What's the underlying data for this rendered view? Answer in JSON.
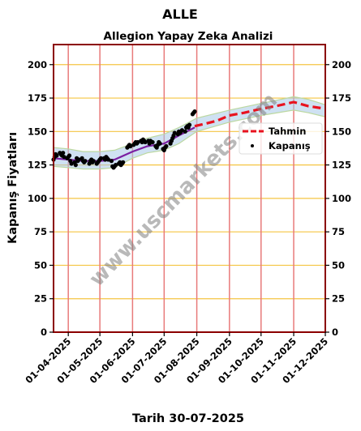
{
  "chart_data": {
    "type": "line",
    "title": "ALLE",
    "subtitle": "Allegion Yapay Zeka Analizi",
    "xlabel": "Tarih 30-07-2025",
    "ylabel": "Kapanış Fiyatları",
    "watermark": "www.uscmarkets.com",
    "x_range": [
      "2025-03-18",
      "2025-12-01"
    ],
    "ylim": [
      0,
      215
    ],
    "y_ticks": [
      0,
      25,
      50,
      75,
      100,
      125,
      150,
      175,
      200
    ],
    "x_ticks": [
      "2025-04-01",
      "2025-05-01",
      "2025-06-01",
      "2025-07-01",
      "2025-08-01",
      "2025-09-01",
      "2025-10-01",
      "2025-11-01",
      "2025-12-01"
    ],
    "x_tick_labels": [
      "01-04-2025",
      "01-05-2025",
      "01-06-2025",
      "01-07-2025",
      "01-08-2025",
      "01-09-2025",
      "01-10-2025",
      "01-11-2025",
      "01-12-2025"
    ],
    "legend": {
      "position": "right",
      "entries": [
        "Tahmin",
        "Kapanış"
      ]
    },
    "grid": {
      "horizontal": true,
      "vertical": true
    },
    "colors": {
      "frame": "#8b0000",
      "hgrid": "#f5c542",
      "vgrid": "#e87a7a",
      "forecast": "#e8121f",
      "trend": "#7b1fa2",
      "band": "#a8c8e8",
      "band_edge": "#bcd8a0",
      "closing": "#000000",
      "watermark": "#808080"
    },
    "series": [
      {
        "name": "Kapanış",
        "style": "scatter",
        "points": [
          [
            "2025-03-18",
            129
          ],
          [
            "2025-03-19",
            131
          ],
          [
            "2025-03-20",
            133
          ],
          [
            "2025-03-21",
            132
          ],
          [
            "2025-03-24",
            134
          ],
          [
            "2025-03-25",
            133
          ],
          [
            "2025-03-26",
            132
          ],
          [
            "2025-03-27",
            134
          ],
          [
            "2025-03-28",
            131
          ],
          [
            "2025-03-31",
            130
          ],
          [
            "2025-04-01",
            131
          ],
          [
            "2025-04-02",
            132
          ],
          [
            "2025-04-03",
            128
          ],
          [
            "2025-04-04",
            126
          ],
          [
            "2025-04-07",
            127
          ],
          [
            "2025-04-08",
            125
          ],
          [
            "2025-04-09",
            130
          ],
          [
            "2025-04-10",
            128
          ],
          [
            "2025-04-11",
            129
          ],
          [
            "2025-04-14",
            130
          ],
          [
            "2025-04-15",
            128
          ],
          [
            "2025-04-16",
            127
          ],
          [
            "2025-04-17",
            128
          ],
          [
            "2025-04-21",
            126
          ],
          [
            "2025-04-22",
            128
          ],
          [
            "2025-04-23",
            129
          ],
          [
            "2025-04-24",
            127
          ],
          [
            "2025-04-25",
            128
          ],
          [
            "2025-04-28",
            126
          ],
          [
            "2025-04-29",
            127
          ],
          [
            "2025-04-30",
            128
          ],
          [
            "2025-05-01",
            129
          ],
          [
            "2025-05-02",
            130
          ],
          [
            "2025-05-05",
            130
          ],
          [
            "2025-05-06",
            129
          ],
          [
            "2025-05-07",
            131
          ],
          [
            "2025-05-08",
            130
          ],
          [
            "2025-05-09",
            129
          ],
          [
            "2025-05-12",
            128
          ],
          [
            "2025-05-13",
            124
          ],
          [
            "2025-05-14",
            123
          ],
          [
            "2025-05-15",
            124
          ],
          [
            "2025-05-16",
            125
          ],
          [
            "2025-05-19",
            126
          ],
          [
            "2025-05-20",
            127
          ],
          [
            "2025-05-21",
            125
          ],
          [
            "2025-05-22",
            126
          ],
          [
            "2025-05-23",
            127
          ],
          [
            "2025-05-27",
            138
          ],
          [
            "2025-05-28",
            139
          ],
          [
            "2025-05-29",
            140
          ],
          [
            "2025-05-30",
            139
          ],
          [
            "2025-06-02",
            140
          ],
          [
            "2025-06-03",
            141
          ],
          [
            "2025-06-04",
            142
          ],
          [
            "2025-06-05",
            141
          ],
          [
            "2025-06-06",
            142
          ],
          [
            "2025-06-09",
            143
          ],
          [
            "2025-06-10",
            142
          ],
          [
            "2025-06-11",
            144
          ],
          [
            "2025-06-12",
            143
          ],
          [
            "2025-06-13",
            142
          ],
          [
            "2025-06-16",
            143
          ],
          [
            "2025-06-17",
            141
          ],
          [
            "2025-06-18",
            143
          ],
          [
            "2025-06-20",
            142
          ],
          [
            "2025-06-23",
            139
          ],
          [
            "2025-06-24",
            138
          ],
          [
            "2025-06-25",
            140
          ],
          [
            "2025-06-26",
            142
          ],
          [
            "2025-06-27",
            141
          ],
          [
            "2025-06-30",
            137
          ],
          [
            "2025-07-01",
            136
          ],
          [
            "2025-07-02",
            138
          ],
          [
            "2025-07-03",
            139
          ],
          [
            "2025-07-07",
            141
          ],
          [
            "2025-07-08",
            143
          ],
          [
            "2025-07-09",
            145
          ],
          [
            "2025-07-10",
            147
          ],
          [
            "2025-07-11",
            149
          ],
          [
            "2025-07-14",
            148
          ],
          [
            "2025-07-15",
            150
          ],
          [
            "2025-07-16",
            149
          ],
          [
            "2025-07-17",
            150
          ],
          [
            "2025-07-18",
            151
          ],
          [
            "2025-07-21",
            150
          ],
          [
            "2025-07-22",
            153
          ],
          [
            "2025-07-23",
            154
          ],
          [
            "2025-07-24",
            153
          ],
          [
            "2025-07-25",
            155
          ],
          [
            "2025-07-28",
            163
          ],
          [
            "2025-07-29",
            164
          ],
          [
            "2025-07-30",
            165
          ]
        ]
      },
      {
        "name": "trend",
        "style": "line",
        "points": [
          [
            "2025-03-18",
            130
          ],
          [
            "2025-04-01",
            129
          ],
          [
            "2025-04-15",
            128
          ],
          [
            "2025-05-01",
            128
          ],
          [
            "2025-05-15",
            129
          ],
          [
            "2025-06-01",
            135
          ],
          [
            "2025-06-15",
            139
          ],
          [
            "2025-07-01",
            141
          ],
          [
            "2025-07-15",
            147
          ],
          [
            "2025-07-30",
            153
          ]
        ]
      },
      {
        "name": "band_upper",
        "style": "area",
        "points": [
          [
            "2025-03-18",
            138
          ],
          [
            "2025-04-01",
            137
          ],
          [
            "2025-04-15",
            135
          ],
          [
            "2025-05-01",
            135
          ],
          [
            "2025-05-15",
            136
          ],
          [
            "2025-06-01",
            141
          ],
          [
            "2025-06-15",
            145
          ],
          [
            "2025-07-01",
            148
          ],
          [
            "2025-07-15",
            153
          ],
          [
            "2025-08-01",
            160
          ],
          [
            "2025-09-01",
            166
          ],
          [
            "2025-10-01",
            171
          ],
          [
            "2025-11-01",
            176
          ],
          [
            "2025-11-15",
            174
          ],
          [
            "2025-12-01",
            170
          ]
        ]
      },
      {
        "name": "band_lower",
        "style": "area",
        "points": [
          [
            "2025-03-18",
            124
          ],
          [
            "2025-04-01",
            123
          ],
          [
            "2025-04-15",
            122
          ],
          [
            "2025-05-01",
            122
          ],
          [
            "2025-05-15",
            123
          ],
          [
            "2025-06-01",
            130
          ],
          [
            "2025-06-15",
            134
          ],
          [
            "2025-07-01",
            136
          ],
          [
            "2025-07-15",
            141
          ],
          [
            "2025-08-01",
            150
          ],
          [
            "2025-09-01",
            157
          ],
          [
            "2025-10-01",
            162
          ],
          [
            "2025-11-01",
            166
          ],
          [
            "2025-11-15",
            164
          ],
          [
            "2025-12-01",
            161
          ]
        ]
      },
      {
        "name": "Tahmin",
        "style": "dashed",
        "points": [
          [
            "2025-07-30",
            154
          ],
          [
            "2025-08-10",
            156
          ],
          [
            "2025-08-20",
            158
          ],
          [
            "2025-09-01",
            162
          ],
          [
            "2025-09-15",
            164
          ],
          [
            "2025-10-01",
            167
          ],
          [
            "2025-10-15",
            169
          ],
          [
            "2025-11-01",
            172
          ],
          [
            "2025-11-15",
            169
          ],
          [
            "2025-12-01",
            167
          ]
        ]
      }
    ]
  }
}
